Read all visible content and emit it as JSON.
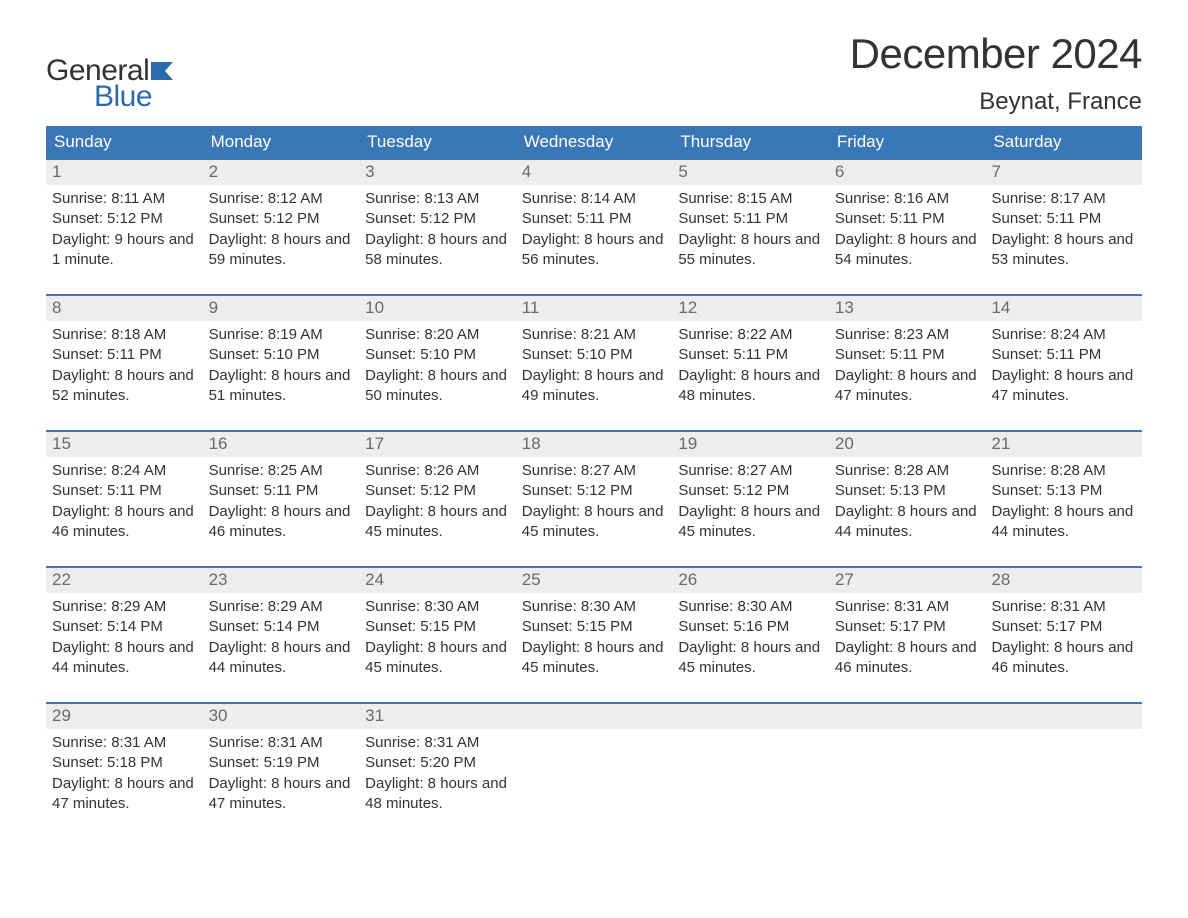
{
  "brand": {
    "word1": "General",
    "word2": "Blue"
  },
  "title": "December 2024",
  "location": "Beynat, France",
  "colors": {
    "header_bg": "#3a77b7",
    "header_text": "#ffffff",
    "daynum_bg": "#ededed",
    "daynum_text": "#6a6a6a",
    "body_text": "#333333",
    "week_border": "#3a77b7",
    "brand_blue": "#2a6bb0",
    "page_bg": "#ffffff"
  },
  "typography": {
    "title_fontsize": 42,
    "location_fontsize": 24,
    "dow_fontsize": 17,
    "daynum_fontsize": 17,
    "body_fontsize": 15,
    "logo_fontsize": 30
  },
  "days_of_week": [
    "Sunday",
    "Monday",
    "Tuesday",
    "Wednesday",
    "Thursday",
    "Friday",
    "Saturday"
  ],
  "weeks": [
    [
      {
        "n": "1",
        "sunrise": "Sunrise: 8:11 AM",
        "sunset": "Sunset: 5:12 PM",
        "daylight": "Daylight: 9 hours and 1 minute."
      },
      {
        "n": "2",
        "sunrise": "Sunrise: 8:12 AM",
        "sunset": "Sunset: 5:12 PM",
        "daylight": "Daylight: 8 hours and 59 minutes."
      },
      {
        "n": "3",
        "sunrise": "Sunrise: 8:13 AM",
        "sunset": "Sunset: 5:12 PM",
        "daylight": "Daylight: 8 hours and 58 minutes."
      },
      {
        "n": "4",
        "sunrise": "Sunrise: 8:14 AM",
        "sunset": "Sunset: 5:11 PM",
        "daylight": "Daylight: 8 hours and 56 minutes."
      },
      {
        "n": "5",
        "sunrise": "Sunrise: 8:15 AM",
        "sunset": "Sunset: 5:11 PM",
        "daylight": "Daylight: 8 hours and 55 minutes."
      },
      {
        "n": "6",
        "sunrise": "Sunrise: 8:16 AM",
        "sunset": "Sunset: 5:11 PM",
        "daylight": "Daylight: 8 hours and 54 minutes."
      },
      {
        "n": "7",
        "sunrise": "Sunrise: 8:17 AM",
        "sunset": "Sunset: 5:11 PM",
        "daylight": "Daylight: 8 hours and 53 minutes."
      }
    ],
    [
      {
        "n": "8",
        "sunrise": "Sunrise: 8:18 AM",
        "sunset": "Sunset: 5:11 PM",
        "daylight": "Daylight: 8 hours and 52 minutes."
      },
      {
        "n": "9",
        "sunrise": "Sunrise: 8:19 AM",
        "sunset": "Sunset: 5:10 PM",
        "daylight": "Daylight: 8 hours and 51 minutes."
      },
      {
        "n": "10",
        "sunrise": "Sunrise: 8:20 AM",
        "sunset": "Sunset: 5:10 PM",
        "daylight": "Daylight: 8 hours and 50 minutes."
      },
      {
        "n": "11",
        "sunrise": "Sunrise: 8:21 AM",
        "sunset": "Sunset: 5:10 PM",
        "daylight": "Daylight: 8 hours and 49 minutes."
      },
      {
        "n": "12",
        "sunrise": "Sunrise: 8:22 AM",
        "sunset": "Sunset: 5:11 PM",
        "daylight": "Daylight: 8 hours and 48 minutes."
      },
      {
        "n": "13",
        "sunrise": "Sunrise: 8:23 AM",
        "sunset": "Sunset: 5:11 PM",
        "daylight": "Daylight: 8 hours and 47 minutes."
      },
      {
        "n": "14",
        "sunrise": "Sunrise: 8:24 AM",
        "sunset": "Sunset: 5:11 PM",
        "daylight": "Daylight: 8 hours and 47 minutes."
      }
    ],
    [
      {
        "n": "15",
        "sunrise": "Sunrise: 8:24 AM",
        "sunset": "Sunset: 5:11 PM",
        "daylight": "Daylight: 8 hours and 46 minutes."
      },
      {
        "n": "16",
        "sunrise": "Sunrise: 8:25 AM",
        "sunset": "Sunset: 5:11 PM",
        "daylight": "Daylight: 8 hours and 46 minutes."
      },
      {
        "n": "17",
        "sunrise": "Sunrise: 8:26 AM",
        "sunset": "Sunset: 5:12 PM",
        "daylight": "Daylight: 8 hours and 45 minutes."
      },
      {
        "n": "18",
        "sunrise": "Sunrise: 8:27 AM",
        "sunset": "Sunset: 5:12 PM",
        "daylight": "Daylight: 8 hours and 45 minutes."
      },
      {
        "n": "19",
        "sunrise": "Sunrise: 8:27 AM",
        "sunset": "Sunset: 5:12 PM",
        "daylight": "Daylight: 8 hours and 45 minutes."
      },
      {
        "n": "20",
        "sunrise": "Sunrise: 8:28 AM",
        "sunset": "Sunset: 5:13 PM",
        "daylight": "Daylight: 8 hours and 44 minutes."
      },
      {
        "n": "21",
        "sunrise": "Sunrise: 8:28 AM",
        "sunset": "Sunset: 5:13 PM",
        "daylight": "Daylight: 8 hours and 44 minutes."
      }
    ],
    [
      {
        "n": "22",
        "sunrise": "Sunrise: 8:29 AM",
        "sunset": "Sunset: 5:14 PM",
        "daylight": "Daylight: 8 hours and 44 minutes."
      },
      {
        "n": "23",
        "sunrise": "Sunrise: 8:29 AM",
        "sunset": "Sunset: 5:14 PM",
        "daylight": "Daylight: 8 hours and 44 minutes."
      },
      {
        "n": "24",
        "sunrise": "Sunrise: 8:30 AM",
        "sunset": "Sunset: 5:15 PM",
        "daylight": "Daylight: 8 hours and 45 minutes."
      },
      {
        "n": "25",
        "sunrise": "Sunrise: 8:30 AM",
        "sunset": "Sunset: 5:15 PM",
        "daylight": "Daylight: 8 hours and 45 minutes."
      },
      {
        "n": "26",
        "sunrise": "Sunrise: 8:30 AM",
        "sunset": "Sunset: 5:16 PM",
        "daylight": "Daylight: 8 hours and 45 minutes."
      },
      {
        "n": "27",
        "sunrise": "Sunrise: 8:31 AM",
        "sunset": "Sunset: 5:17 PM",
        "daylight": "Daylight: 8 hours and 46 minutes."
      },
      {
        "n": "28",
        "sunrise": "Sunrise: 8:31 AM",
        "sunset": "Sunset: 5:17 PM",
        "daylight": "Daylight: 8 hours and 46 minutes."
      }
    ],
    [
      {
        "n": "29",
        "sunrise": "Sunrise: 8:31 AM",
        "sunset": "Sunset: 5:18 PM",
        "daylight": "Daylight: 8 hours and 47 minutes."
      },
      {
        "n": "30",
        "sunrise": "Sunrise: 8:31 AM",
        "sunset": "Sunset: 5:19 PM",
        "daylight": "Daylight: 8 hours and 47 minutes."
      },
      {
        "n": "31",
        "sunrise": "Sunrise: 8:31 AM",
        "sunset": "Sunset: 5:20 PM",
        "daylight": "Daylight: 8 hours and 48 minutes."
      },
      {
        "n": "",
        "sunrise": "",
        "sunset": "",
        "daylight": ""
      },
      {
        "n": "",
        "sunrise": "",
        "sunset": "",
        "daylight": ""
      },
      {
        "n": "",
        "sunrise": "",
        "sunset": "",
        "daylight": ""
      },
      {
        "n": "",
        "sunrise": "",
        "sunset": "",
        "daylight": ""
      }
    ]
  ]
}
